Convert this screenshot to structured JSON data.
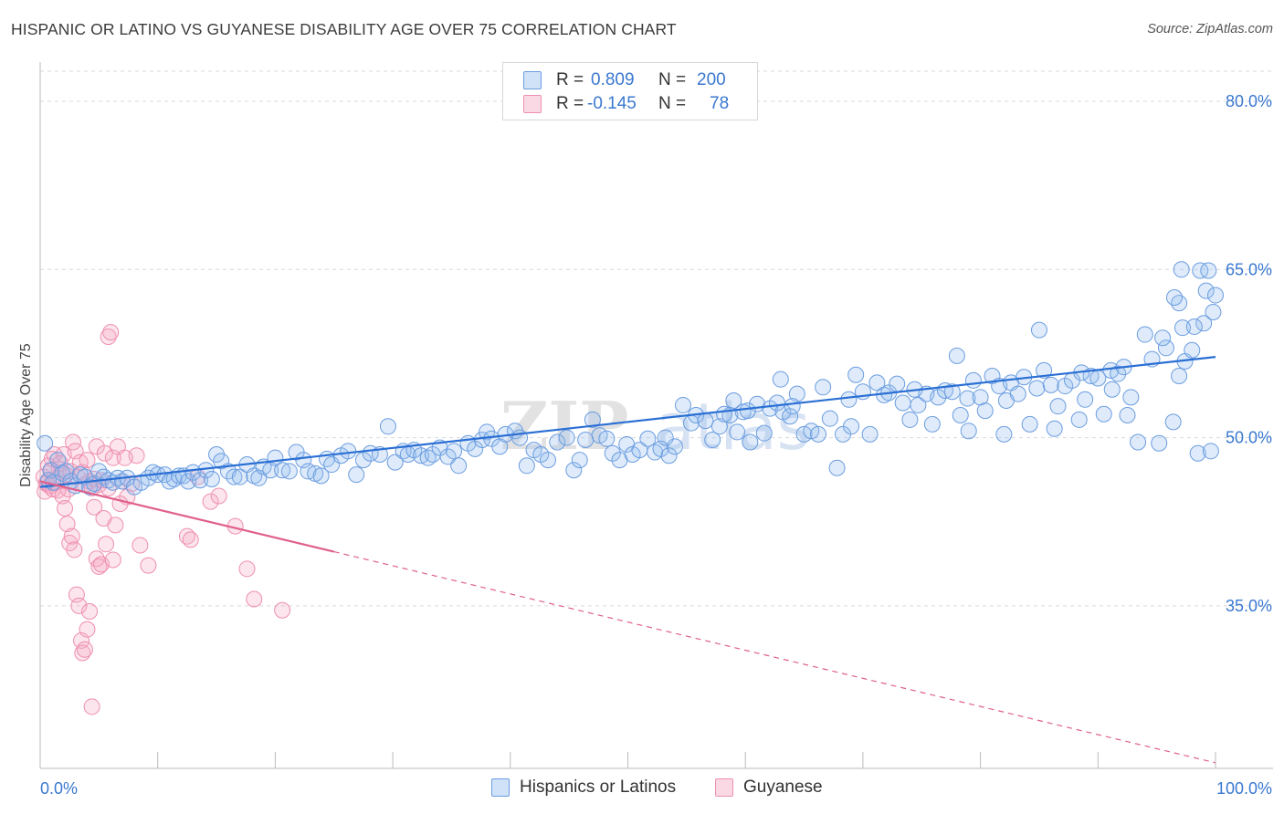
{
  "header": {
    "title": "HISPANIC OR LATINO VS GUYANESE DISABILITY AGE OVER 75 CORRELATION CHART",
    "source": "Source: ZipAtlas.com"
  },
  "legend_stats": {
    "series_a": {
      "r_label": "R =",
      "r_value": "0.809",
      "n_label": "N =",
      "n_value": "200"
    },
    "series_b": {
      "r_label": "R =",
      "r_value": "-0.145",
      "n_label": "N =",
      "n_value": "78"
    }
  },
  "watermark": {
    "part1": "ZIP",
    "part2": "atlas"
  },
  "colors": {
    "blue_fill": "rgba(150,190,240,0.30)",
    "blue_stroke": "#6b9de0",
    "blue_line": "#2a6fd4",
    "pink_fill": "rgba(245,170,195,0.30)",
    "pink_stroke": "#ee8fb0",
    "pink_line": "#e0608a",
    "tick_text": "#3a78d0",
    "grid": "#d9d9d9"
  },
  "chart_data": {
    "type": "scatter",
    "title": "HISPANIC OR LATINO VS GUYANESE DISABILITY AGE OVER 75 CORRELATION CHART",
    "xlabel": "",
    "ylabel": "Disability Age Over 75",
    "xlim": [
      0,
      100
    ],
    "ylim": [
      20.5,
      83.5
    ],
    "x_tick_labels": [
      "0.0%",
      "100.0%"
    ],
    "y_ticks": [
      35,
      50,
      65,
      80
    ],
    "y_tick_labels": [
      "35.0%",
      "50.0%",
      "65.0%",
      "80.0%"
    ],
    "grid": true,
    "legend_position": "top-center",
    "series": [
      {
        "name": "Hispanics or Latinos",
        "color": "#6b9de0",
        "trend": {
          "x": [
            0,
            100
          ],
          "y": [
            45.6,
            57.2
          ],
          "style": "solid"
        },
        "points": [
          [
            0.4,
            49.5
          ],
          [
            0.7,
            46.2
          ],
          [
            0.9,
            47.1
          ],
          [
            1.1,
            46.0
          ],
          [
            1.5,
            48.0
          ],
          [
            1.9,
            46.8
          ],
          [
            2.2,
            47.0
          ],
          [
            2.6,
            46.1
          ],
          [
            3.0,
            45.7
          ],
          [
            3.4,
            46.7
          ],
          [
            3.8,
            46.5
          ],
          [
            4.2,
            45.6
          ],
          [
            4.6,
            45.9
          ],
          [
            5.0,
            47.0
          ],
          [
            5.4,
            46.5
          ],
          [
            5.8,
            46.2
          ],
          [
            6.2,
            46.0
          ],
          [
            6.6,
            46.4
          ],
          [
            7.0,
            46.1
          ],
          [
            7.4,
            46.4
          ],
          [
            8.0,
            45.6
          ],
          [
            8.6,
            46.0
          ],
          [
            9.2,
            46.4
          ],
          [
            9.6,
            46.9
          ],
          [
            10.0,
            46.7
          ],
          [
            10.6,
            46.7
          ],
          [
            11.0,
            46.1
          ],
          [
            11.4,
            46.3
          ],
          [
            11.8,
            46.6
          ],
          [
            12.2,
            46.6
          ],
          [
            12.6,
            46.1
          ],
          [
            13.0,
            46.9
          ],
          [
            13.6,
            46.2
          ],
          [
            14.1,
            47.1
          ],
          [
            14.6,
            46.3
          ],
          [
            15.0,
            48.5
          ],
          [
            15.4,
            47.9
          ],
          [
            16.0,
            47.0
          ],
          [
            16.5,
            46.5
          ],
          [
            17.0,
            46.5
          ],
          [
            17.6,
            47.6
          ],
          [
            18.2,
            46.6
          ],
          [
            18.6,
            46.4
          ],
          [
            19.0,
            47.4
          ],
          [
            19.6,
            47.1
          ],
          [
            20.0,
            48.2
          ],
          [
            20.6,
            47.1
          ],
          [
            21.2,
            47.0
          ],
          [
            21.8,
            48.7
          ],
          [
            22.4,
            48.0
          ],
          [
            22.8,
            47.0
          ],
          [
            23.4,
            46.8
          ],
          [
            23.9,
            46.6
          ],
          [
            24.4,
            48.1
          ],
          [
            24.8,
            47.6
          ],
          [
            25.6,
            48.4
          ],
          [
            26.2,
            48.8
          ],
          [
            26.9,
            46.7
          ],
          [
            27.5,
            48.0
          ],
          [
            28.1,
            48.6
          ],
          [
            28.9,
            48.5
          ],
          [
            29.6,
            51.0
          ],
          [
            30.2,
            47.8
          ],
          [
            30.9,
            48.8
          ],
          [
            31.3,
            48.5
          ],
          [
            31.8,
            48.9
          ],
          [
            32.4,
            48.4
          ],
          [
            33.0,
            48.2
          ],
          [
            33.4,
            48.5
          ],
          [
            34.0,
            49.1
          ],
          [
            34.7,
            48.3
          ],
          [
            35.2,
            48.8
          ],
          [
            35.6,
            47.5
          ],
          [
            36.4,
            49.5
          ],
          [
            37.0,
            49.0
          ],
          [
            37.6,
            49.8
          ],
          [
            38.0,
            50.5
          ],
          [
            38.4,
            49.9
          ],
          [
            39.1,
            49.2
          ],
          [
            39.6,
            50.3
          ],
          [
            40.4,
            50.6
          ],
          [
            40.8,
            50.0
          ],
          [
            41.4,
            47.5
          ],
          [
            42.0,
            48.9
          ],
          [
            42.6,
            48.5
          ],
          [
            43.2,
            48.0
          ],
          [
            44.0,
            49.6
          ],
          [
            44.8,
            50.0
          ],
          [
            45.4,
            47.1
          ],
          [
            45.9,
            48.0
          ],
          [
            46.4,
            49.8
          ],
          [
            47.0,
            51.6
          ],
          [
            47.6,
            50.2
          ],
          [
            48.2,
            49.9
          ],
          [
            48.7,
            48.6
          ],
          [
            49.3,
            48.0
          ],
          [
            49.9,
            49.4
          ],
          [
            50.4,
            48.5
          ],
          [
            51.0,
            48.9
          ],
          [
            51.7,
            49.9
          ],
          [
            52.3,
            48.7
          ],
          [
            52.8,
            49.0
          ],
          [
            53.5,
            48.4
          ],
          [
            54.0,
            49.2
          ],
          [
            54.7,
            52.9
          ],
          [
            55.4,
            51.3
          ],
          [
            55.8,
            52.0
          ],
          [
            56.6,
            51.5
          ],
          [
            57.2,
            49.8
          ],
          [
            57.8,
            51.0
          ],
          [
            58.7,
            52.0
          ],
          [
            59.3,
            50.5
          ],
          [
            59.8,
            52.3
          ],
          [
            60.4,
            49.6
          ],
          [
            61.0,
            53.0
          ],
          [
            61.6,
            50.4
          ],
          [
            62.1,
            52.6
          ],
          [
            62.7,
            53.1
          ],
          [
            63.2,
            52.3
          ],
          [
            63.8,
            51.9
          ],
          [
            64.4,
            53.9
          ],
          [
            65.0,
            50.3
          ],
          [
            65.6,
            50.6
          ],
          [
            66.2,
            50.3
          ],
          [
            66.6,
            54.5
          ],
          [
            67.2,
            51.7
          ],
          [
            67.8,
            47.3
          ],
          [
            68.3,
            50.3
          ],
          [
            68.8,
            53.4
          ],
          [
            69.4,
            55.6
          ],
          [
            70.0,
            54.1
          ],
          [
            70.6,
            50.3
          ],
          [
            71.2,
            54.9
          ],
          [
            71.8,
            53.8
          ],
          [
            72.2,
            54.0
          ],
          [
            72.9,
            54.8
          ],
          [
            73.4,
            53.1
          ],
          [
            74.0,
            51.6
          ],
          [
            74.7,
            52.9
          ],
          [
            75.4,
            53.9
          ],
          [
            75.9,
            51.2
          ],
          [
            76.4,
            53.6
          ],
          [
            77.0,
            54.2
          ],
          [
            77.6,
            54.1
          ],
          [
            78.3,
            52.0
          ],
          [
            78.9,
            53.5
          ],
          [
            79.4,
            55.1
          ],
          [
            80.0,
            53.6
          ],
          [
            80.4,
            52.4
          ],
          [
            81.0,
            55.5
          ],
          [
            81.6,
            54.6
          ],
          [
            82.2,
            53.3
          ],
          [
            82.6,
            54.9
          ],
          [
            83.2,
            53.9
          ],
          [
            83.7,
            55.4
          ],
          [
            84.2,
            51.2
          ],
          [
            84.8,
            54.4
          ],
          [
            85.4,
            56.0
          ],
          [
            86.0,
            54.7
          ],
          [
            86.6,
            52.8
          ],
          [
            87.2,
            54.6
          ],
          [
            87.8,
            55.1
          ],
          [
            88.4,
            51.6
          ],
          [
            88.9,
            53.4
          ],
          [
            89.4,
            55.5
          ],
          [
            90.0,
            55.3
          ],
          [
            90.5,
            52.1
          ],
          [
            91.1,
            56.0
          ],
          [
            91.7,
            55.7
          ],
          [
            92.2,
            56.3
          ],
          [
            92.8,
            53.6
          ],
          [
            93.4,
            49.6
          ],
          [
            94.0,
            59.2
          ],
          [
            94.6,
            57.0
          ],
          [
            95.2,
            49.5
          ],
          [
            95.8,
            58.0
          ],
          [
            96.4,
            51.4
          ],
          [
            96.9,
            55.5
          ],
          [
            97.4,
            56.8
          ],
          [
            98.0,
            57.8
          ],
          [
            98.5,
            48.6
          ],
          [
            99.0,
            60.2
          ],
          [
            99.6,
            48.8
          ],
          [
            60.2,
            52.4
          ],
          [
            59.0,
            53.3
          ],
          [
            64.0,
            52.8
          ],
          [
            69.0,
            51.0
          ],
          [
            74.4,
            54.3
          ],
          [
            79.0,
            50.6
          ],
          [
            82.0,
            50.3
          ],
          [
            86.3,
            50.8
          ],
          [
            88.6,
            55.8
          ],
          [
            91.2,
            54.3
          ],
          [
            53.2,
            50.0
          ],
          [
            63.0,
            55.2
          ],
          [
            78.0,
            57.3
          ],
          [
            85.0,
            59.6
          ],
          [
            92.5,
            52.0
          ],
          [
            58.2,
            52.1
          ],
          [
            95.5,
            58.9
          ],
          [
            97.2,
            59.8
          ],
          [
            98.2,
            59.9
          ],
          [
            99.8,
            61.2
          ],
          [
            96.9,
            62.0
          ],
          [
            98.7,
            64.9
          ],
          [
            97.1,
            65.0
          ],
          [
            99.2,
            63.1
          ],
          [
            96.5,
            62.5
          ],
          [
            100.0,
            62.7
          ],
          [
            99.4,
            64.9
          ]
        ]
      },
      {
        "name": "Guyanese",
        "color": "#ee8fb0",
        "trend": {
          "x": [
            0,
            100
          ],
          "y": [
            46.1,
            21.0
          ],
          "solid_until_x": 25,
          "style": "solid-then-dashed"
        },
        "points": [
          [
            0.3,
            46.5
          ],
          [
            0.5,
            45.9
          ],
          [
            0.7,
            47.5
          ],
          [
            0.9,
            47.0
          ],
          [
            1.0,
            48.1
          ],
          [
            1.2,
            48.5
          ],
          [
            1.4,
            46.3
          ],
          [
            1.6,
            47.2
          ],
          [
            1.8,
            46.9
          ],
          [
            2.0,
            48.5
          ],
          [
            2.2,
            46.7
          ],
          [
            2.4,
            45.4
          ],
          [
            2.6,
            47.0
          ],
          [
            2.8,
            49.6
          ],
          [
            3.0,
            48.8
          ],
          [
            3.2,
            46.5
          ],
          [
            3.4,
            47.8
          ],
          [
            3.6,
            46.9
          ],
          [
            3.8,
            45.8
          ],
          [
            4.0,
            48.0
          ],
          [
            4.2,
            46.1
          ],
          [
            4.4,
            45.5
          ],
          [
            4.6,
            46.3
          ],
          [
            4.8,
            49.2
          ],
          [
            5.0,
            45.8
          ],
          [
            5.2,
            46.2
          ],
          [
            5.5,
            48.6
          ],
          [
            5.8,
            45.5
          ],
          [
            6.2,
            48.2
          ],
          [
            6.6,
            49.2
          ],
          [
            7.0,
            46.1
          ],
          [
            7.4,
            44.7
          ],
          [
            7.8,
            45.9
          ],
          [
            8.2,
            48.4
          ],
          [
            0.4,
            45.2
          ],
          [
            0.6,
            46.0
          ],
          [
            0.8,
            45.7
          ],
          [
            1.1,
            45.4
          ],
          [
            1.3,
            46.0
          ],
          [
            1.5,
            45.3
          ],
          [
            1.7,
            47.7
          ],
          [
            1.9,
            44.8
          ],
          [
            2.1,
            43.7
          ],
          [
            2.3,
            42.3
          ],
          [
            2.5,
            40.6
          ],
          [
            2.7,
            41.2
          ],
          [
            2.9,
            40.0
          ],
          [
            3.1,
            36.0
          ],
          [
            3.3,
            35.0
          ],
          [
            3.5,
            31.9
          ],
          [
            3.6,
            30.8
          ],
          [
            3.8,
            31.1
          ],
          [
            4.0,
            32.9
          ],
          [
            4.2,
            34.5
          ],
          [
            4.4,
            26.0
          ],
          [
            4.6,
            43.8
          ],
          [
            4.8,
            39.2
          ],
          [
            5.0,
            38.5
          ],
          [
            5.2,
            38.7
          ],
          [
            5.4,
            42.8
          ],
          [
            5.6,
            40.5
          ],
          [
            5.8,
            59.0
          ],
          [
            6.0,
            59.4
          ],
          [
            6.2,
            39.1
          ],
          [
            6.4,
            42.2
          ],
          [
            6.8,
            44.1
          ],
          [
            7.2,
            48.2
          ],
          [
            8.5,
            40.4
          ],
          [
            9.2,
            38.6
          ],
          [
            12.5,
            41.2
          ],
          [
            12.8,
            40.9
          ],
          [
            13.4,
            46.5
          ],
          [
            14.5,
            44.3
          ],
          [
            15.2,
            44.8
          ],
          [
            16.6,
            42.1
          ],
          [
            17.6,
            38.3
          ],
          [
            18.2,
            35.6
          ],
          [
            20.6,
            34.6
          ]
        ]
      }
    ]
  },
  "bottom_legend": [
    {
      "label": "Hispanics or Latinos"
    },
    {
      "label": "Guyanese"
    }
  ]
}
